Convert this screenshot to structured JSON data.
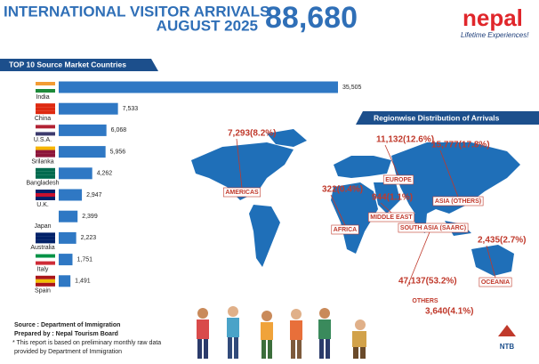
{
  "header": {
    "title": "INTERNATIONAL VISITOR ARRIVALS",
    "subtitle": "AUGUST 2025",
    "total": "88,680",
    "brand": "nepal",
    "tagline": "Lifetime Experiences!"
  },
  "chart_data": {
    "type": "bar",
    "orientation": "horizontal",
    "title": "TOP 10 Source Market Countries",
    "categories": [
      "India",
      "China",
      "U.S.A.",
      "Srilanka",
      "Bangladesh",
      "U.K.",
      "Japan",
      "Australia",
      "Italy",
      "Spain"
    ],
    "values": [
      35505,
      7533,
      6068,
      5956,
      4262,
      2947,
      2399,
      2223,
      1751,
      1491
    ],
    "value_labels": [
      "35,505",
      "7,533",
      "6,068",
      "5,956",
      "4,262",
      "2,947",
      "2,399",
      "2,223",
      "1,751",
      "1,491"
    ],
    "color": "#2f78c4"
  },
  "regions": {
    "title": "Regionwise Distribution of Arrivals",
    "items": [
      {
        "name": "AMERICAS",
        "label": "7,293(8.2%)"
      },
      {
        "name": "EUROPE",
        "label": "11,132(12.6%)"
      },
      {
        "name": "ASIA (OTHERS)",
        "label": "15,777(17.8%)"
      },
      {
        "name": "AFRICA",
        "label": "322(0.4%)"
      },
      {
        "name": "MIDDLE EAST",
        "label": "944(1.1%)"
      },
      {
        "name": "SOUTH ASIA (SAARC)",
        "label": "47,137(53.2%)"
      },
      {
        "name": "OCEANIA",
        "label": "2,435(2.7%)"
      },
      {
        "name": "OTHERS",
        "label": "3,640(4.1%)"
      }
    ]
  },
  "footer": {
    "source": "Source : Department of Immigration",
    "prepared": "Prepared by : Nepal Tourism Board",
    "note1": "* This report is based on preliminary monthly raw data",
    "note2": "provided by Department of Immigration",
    "logo": "NTB"
  }
}
